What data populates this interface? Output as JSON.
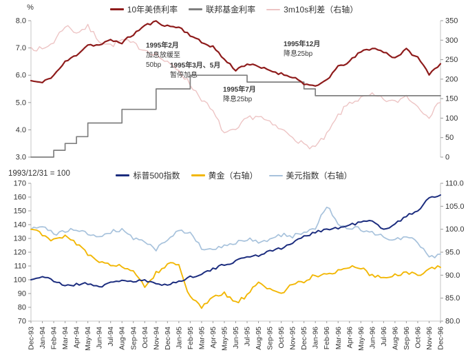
{
  "top_panel": {
    "unit": "%"
  },
  "bottom_panel": {
    "note": "1993/12/31 = 100"
  },
  "annotations": [
    {
      "line1": "1995年2月",
      "line2": "加息放缓至",
      "line3": "50bp"
    },
    {
      "line1": "1995年3月、5月",
      "line2": "暂停加息"
    },
    {
      "line1": "1995年7月",
      "line2": "降息25bp"
    },
    {
      "line1": "1995年12月",
      "line2": "降息25bp"
    }
  ],
  "chart_data": {
    "type": "line",
    "categories": [
      "Dec-93",
      "Jan-94",
      "Feb-94",
      "Mar-94",
      "Apr-94",
      "May-94",
      "Jun-94",
      "Jul-94",
      "Aug-94",
      "Sep-94",
      "Oct-94",
      "Nov-94",
      "Dec-94",
      "Jan-95",
      "Feb-95",
      "Mar-95",
      "Apr-95",
      "May-95",
      "Jun-95",
      "Jul-95",
      "Aug-95",
      "Sep-95",
      "Oct-95",
      "Nov-95",
      "Dec-95",
      "Jan-96",
      "Feb-96",
      "Mar-96",
      "Apr-96",
      "May-96",
      "Jun-96",
      "Jul-96",
      "Aug-96",
      "Sep-96",
      "Oct-96",
      "Nov-96",
      "Dec-96"
    ],
    "panels": [
      {
        "name": "rates-panel",
        "unit_left": "%",
        "ylim_left": [
          3,
          8
        ],
        "yticks_left": [
          "8.0",
          "7.0",
          "6.0",
          "5.0",
          "4.0",
          "3.0"
        ],
        "ylim_right": [
          0,
          350
        ],
        "yticks_right": [
          "350",
          "300",
          "250",
          "200",
          "150",
          "100",
          "50",
          "0"
        ],
        "x_labels": false,
        "x_axis_line": false,
        "series": [
          {
            "name": "10年美债利率",
            "axis": "left",
            "color": "#8E1B1B",
            "width": 2.2,
            "noise": 0.05,
            "seed": 11,
            "values": [
              5.8,
              5.72,
              6.0,
              6.48,
              6.75,
              7.12,
              7.1,
              7.28,
              7.2,
              7.5,
              7.82,
              7.96,
              7.8,
              7.76,
              7.48,
              7.2,
              7.05,
              6.58,
              6.2,
              6.42,
              6.3,
              6.18,
              6.05,
              5.95,
              5.7,
              5.56,
              5.84,
              6.3,
              6.5,
              6.86,
              7.0,
              6.86,
              6.64,
              6.94,
              6.64,
              6.06,
              6.42
            ]
          },
          {
            "name": "联邦基金利率",
            "axis": "left",
            "color": "#7F7F7F",
            "width": 1.7,
            "style": "step",
            "noise": 0,
            "seed": 1,
            "values": [
              3.0,
              3.0,
              3.25,
              3.5,
              3.75,
              4.25,
              4.25,
              4.25,
              4.75,
              4.75,
              4.75,
              5.5,
              5.5,
              5.5,
              6.0,
              6.0,
              6.0,
              6.0,
              6.0,
              5.75,
              5.75,
              5.75,
              5.75,
              5.75,
              5.5,
              5.25,
              5.25,
              5.25,
              5.25,
              5.25,
              5.25,
              5.25,
              5.25,
              5.25,
              5.25,
              5.25,
              5.25
            ]
          },
          {
            "name": "3m10s利差（右轴）",
            "axis": "right",
            "color": "#EDC4C4",
            "width": 1.4,
            "noise": 7,
            "seed": 7,
            "values": [
              282,
              275,
              296,
              338,
              320,
              334,
              300,
              286,
              300,
              290,
              276,
              264,
              240,
              224,
              186,
              150,
              115,
              62,
              66,
              100,
              106,
              86,
              70,
              54,
              30,
              26,
              56,
              106,
              140,
              150,
              158,
              148,
              140,
              158,
              130,
              106,
              140
            ]
          }
        ]
      },
      {
        "name": "indices-panel",
        "note": "1993/12/31 = 100",
        "ylim_left": [
          70,
          170
        ],
        "yticks_left": [
          "170",
          "160",
          "150",
          "140",
          "130",
          "120",
          "110",
          "100",
          "90",
          "80",
          "70"
        ],
        "ylim_right": [
          80,
          110
        ],
        "yticks_right": [
          "110.0",
          "105.0",
          "100.0",
          "95.0",
          "90.0",
          "85.0",
          "80.0"
        ],
        "x_labels": true,
        "x_axis_line": true,
        "series": [
          {
            "name": "标普500指数",
            "axis": "left",
            "color": "#1B2C7E",
            "width": 2.0,
            "noise": 1.0,
            "seed": 21,
            "values": [
              100,
              102.5,
              99,
              96,
              96.5,
              97.5,
              95,
              97.5,
              100,
              98.5,
              99.5,
              96.5,
              97,
              98.5,
              102,
              104.5,
              107.5,
              111,
              113.5,
              117,
              117.5,
              121.5,
              122.5,
              127,
              131,
              135,
              136.5,
              137.5,
              139.5,
              142,
              142.5,
              136,
              141,
              146,
              150,
              160,
              161.5
            ]
          },
          {
            "name": "黄金（右轴）",
            "axis": "right",
            "color": "#F2B705",
            "width": 1.9,
            "noise": 0.45,
            "seed": 31,
            "values": [
              100,
              99,
              97.5,
              98.5,
              97,
              94.5,
              92.5,
              92.5,
              92,
              90.5,
              87.5,
              90.5,
              92.5,
              92,
              85,
              83,
              85,
              86,
              84,
              85.5,
              88.5,
              87,
              86,
              88,
              88.7,
              90,
              90.3,
              91,
              91.7,
              91.5,
              90,
              89.3,
              90.2,
              90.6,
              90,
              91.6,
              91.7
            ]
          },
          {
            "name": "美元指数（右轴）",
            "axis": "right",
            "color": "#A7C2DC",
            "width": 1.7,
            "noise": 0.45,
            "seed": 41,
            "values": [
              100,
              100.5,
              99,
              99.5,
              100,
              99,
              98.5,
              99.5,
              100,
              98,
              97.5,
              95.5,
              98,
              100,
              99,
              96,
              95.2,
              96.5,
              97,
              97.8,
              97.3,
              97.6,
              98.8,
              98.5,
              99.3,
              100.3,
              105.2,
              100.8,
              100.3,
              100,
              99.2,
              98.4,
              97.6,
              98.2,
              97.4,
              93.6,
              94.6
            ]
          }
        ]
      }
    ]
  }
}
